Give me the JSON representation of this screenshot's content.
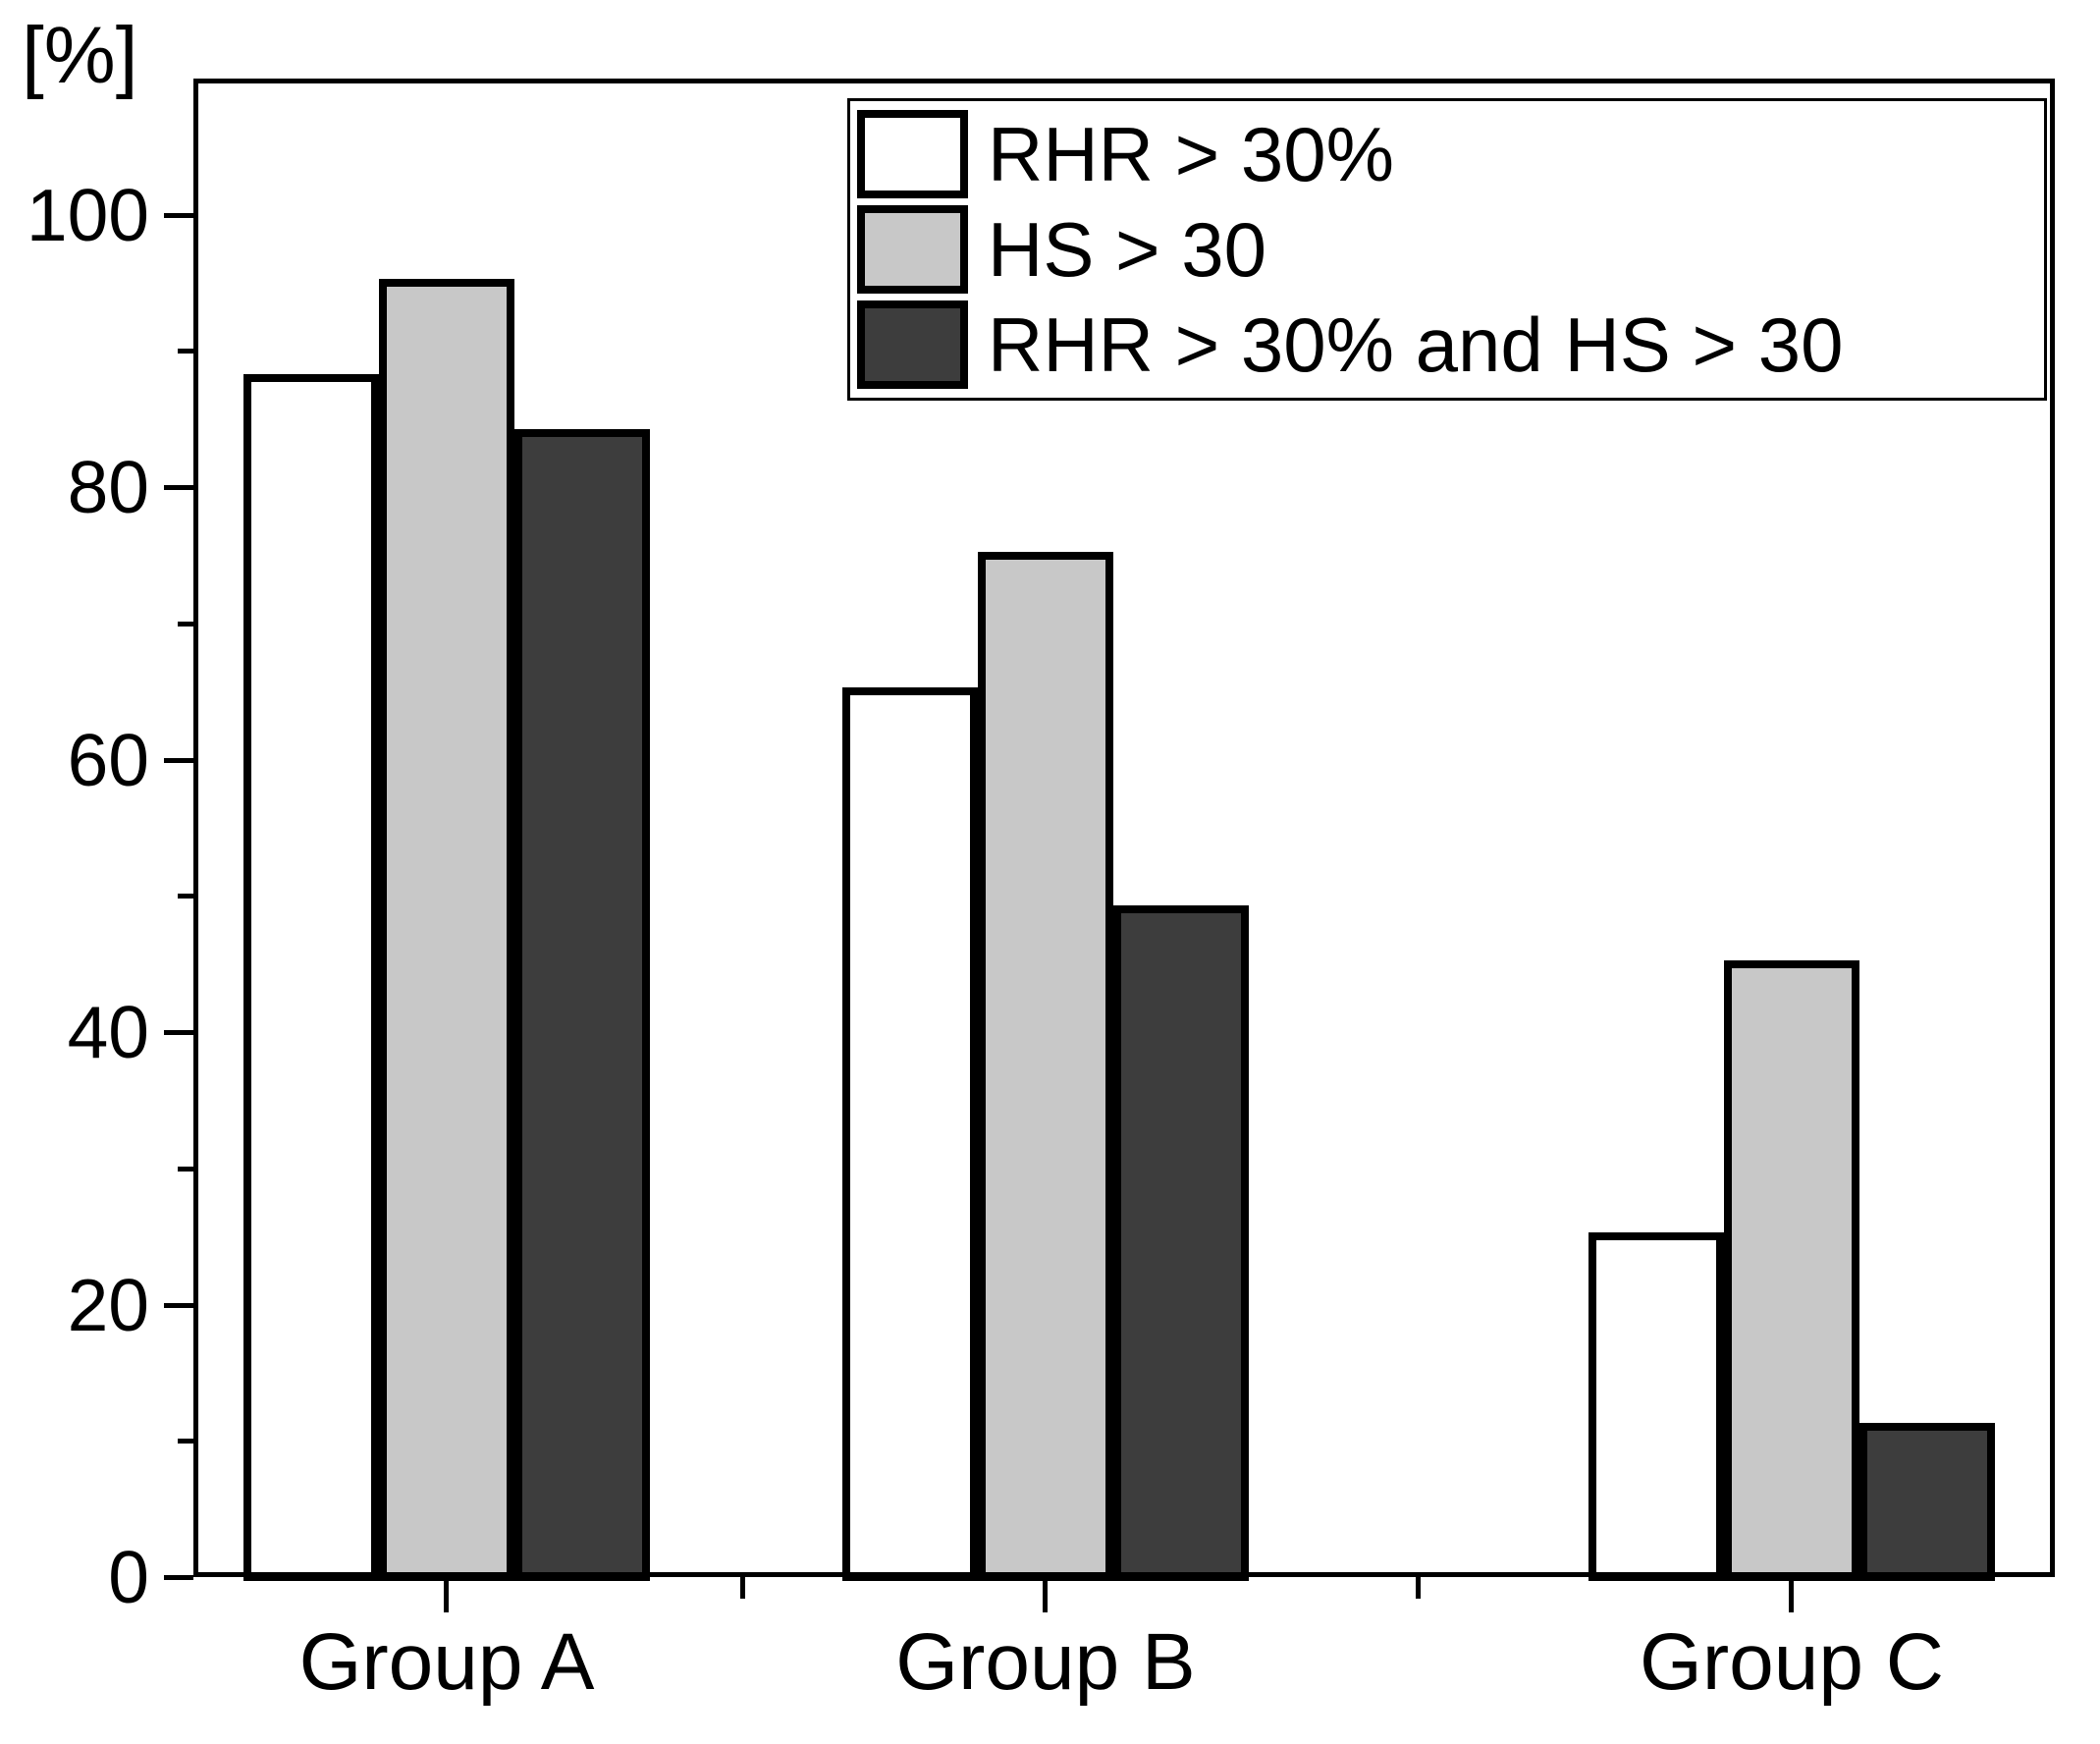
{
  "chart_data": {
    "type": "bar",
    "title": "",
    "xlabel": "",
    "ylabel": "[%]",
    "categories": [
      "Group A",
      "Group B",
      "Group C"
    ],
    "series": [
      {
        "name": "RHR > 30%",
        "color": "#ffffff",
        "values": [
          88,
          65,
          25
        ]
      },
      {
        "name": "HS > 30",
        "color": "#c8c8c8",
        "values": [
          95,
          75,
          45
        ]
      },
      {
        "name": "RHR > 30% and HS > 30",
        "color": "#3d3d3d",
        "values": [
          84,
          49,
          11
        ]
      }
    ],
    "ylim": [
      0,
      110
    ],
    "yticks_major": [
      0,
      20,
      40,
      60,
      80,
      100
    ],
    "yticks_minor": [
      10,
      30,
      50,
      70,
      90
    ],
    "grid": false,
    "legend_position": "top-right",
    "bar_border_color": "#000000",
    "axis_color": "#000000",
    "background_color": "#ffffff"
  }
}
